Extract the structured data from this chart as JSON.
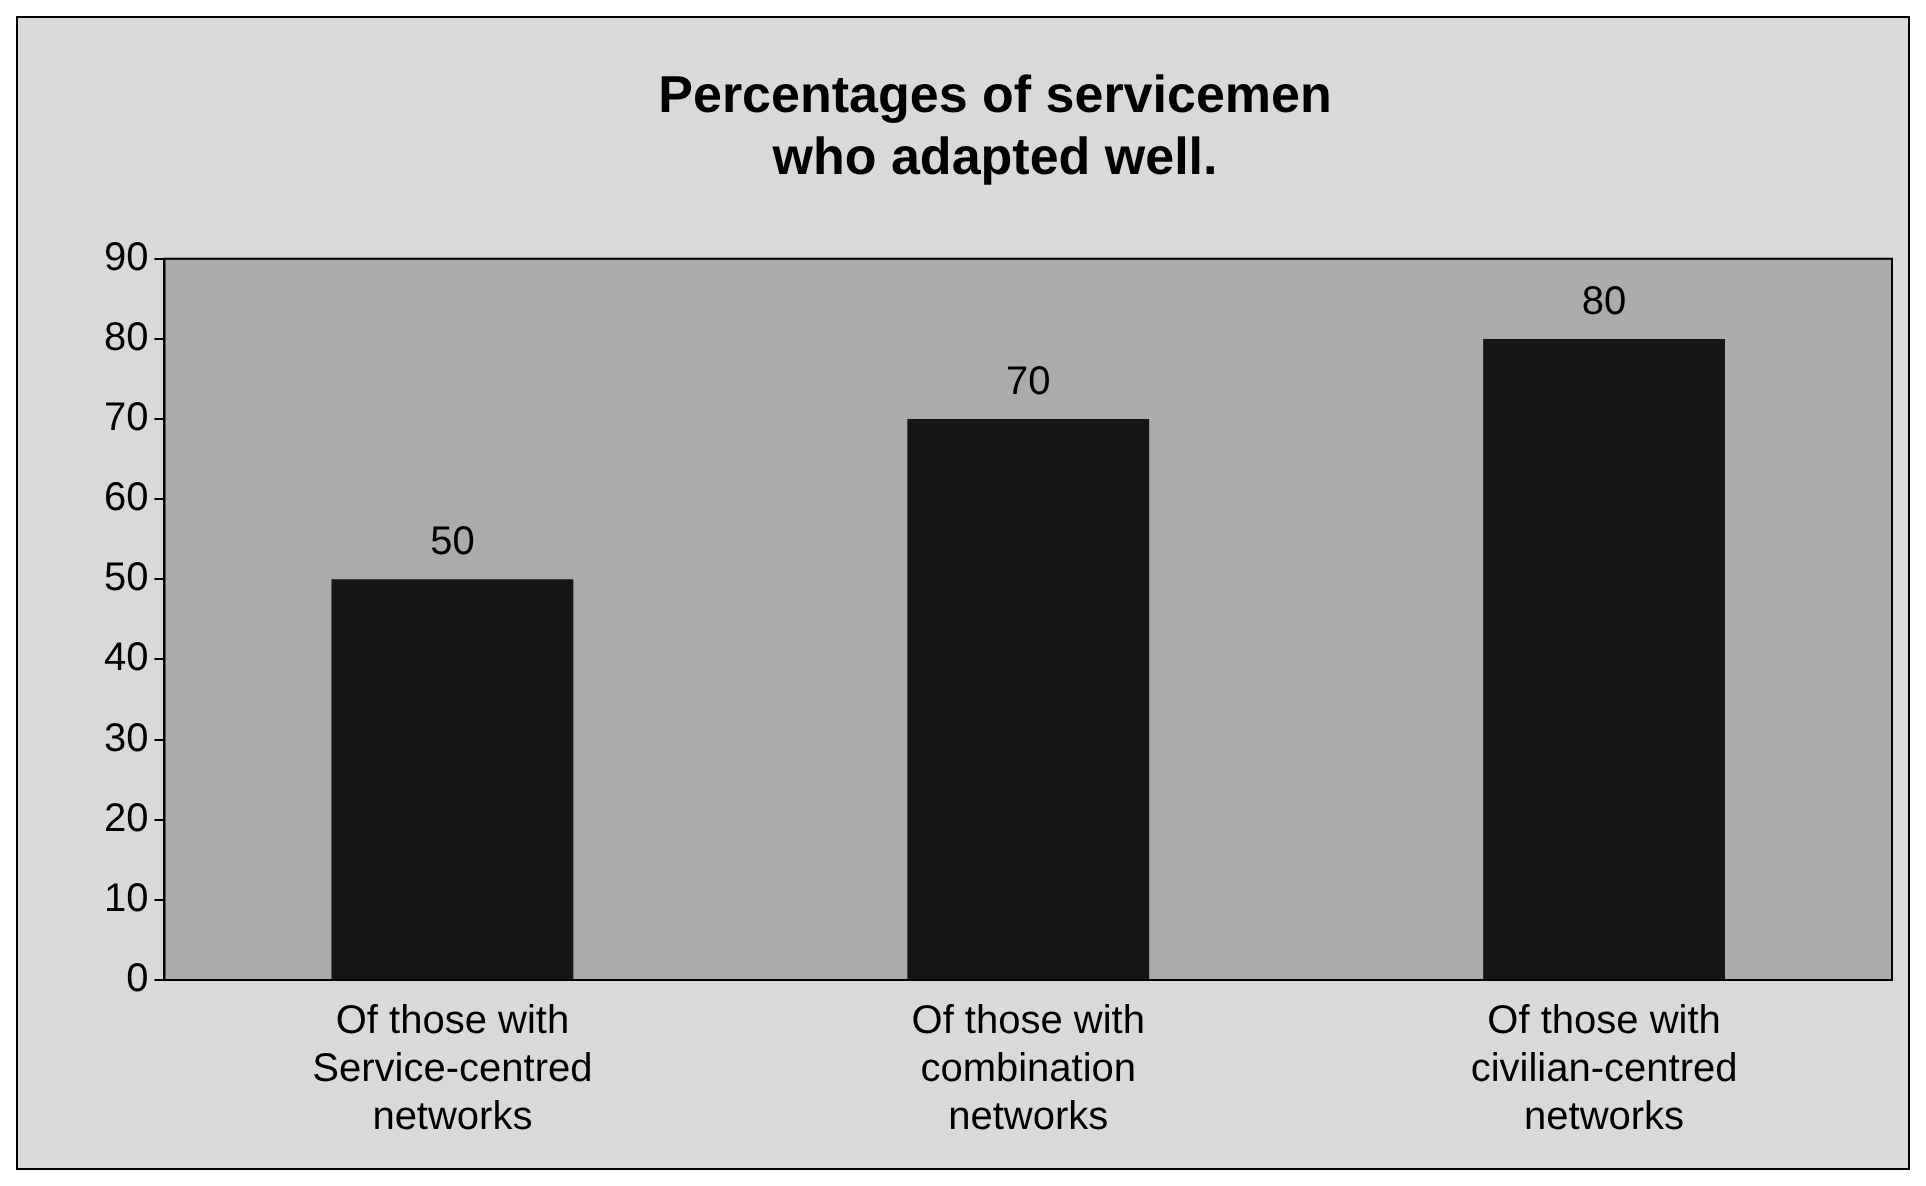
{
  "chart_data": {
    "type": "bar",
    "title": "Percentages of servicemen who adapted well.",
    "categories": [
      "Of those with Service-centred networks",
      "Of those with combination networks",
      "Of those with civilian-centred networks"
    ],
    "values": [
      50,
      70,
      80
    ],
    "color": "#151515",
    "ylim": [
      0,
      90
    ],
    "yticks": [
      0,
      10,
      20,
      30,
      40,
      50,
      60,
      70,
      80,
      90
    ],
    "grid": false,
    "legend": false,
    "data_labels": true
  }
}
